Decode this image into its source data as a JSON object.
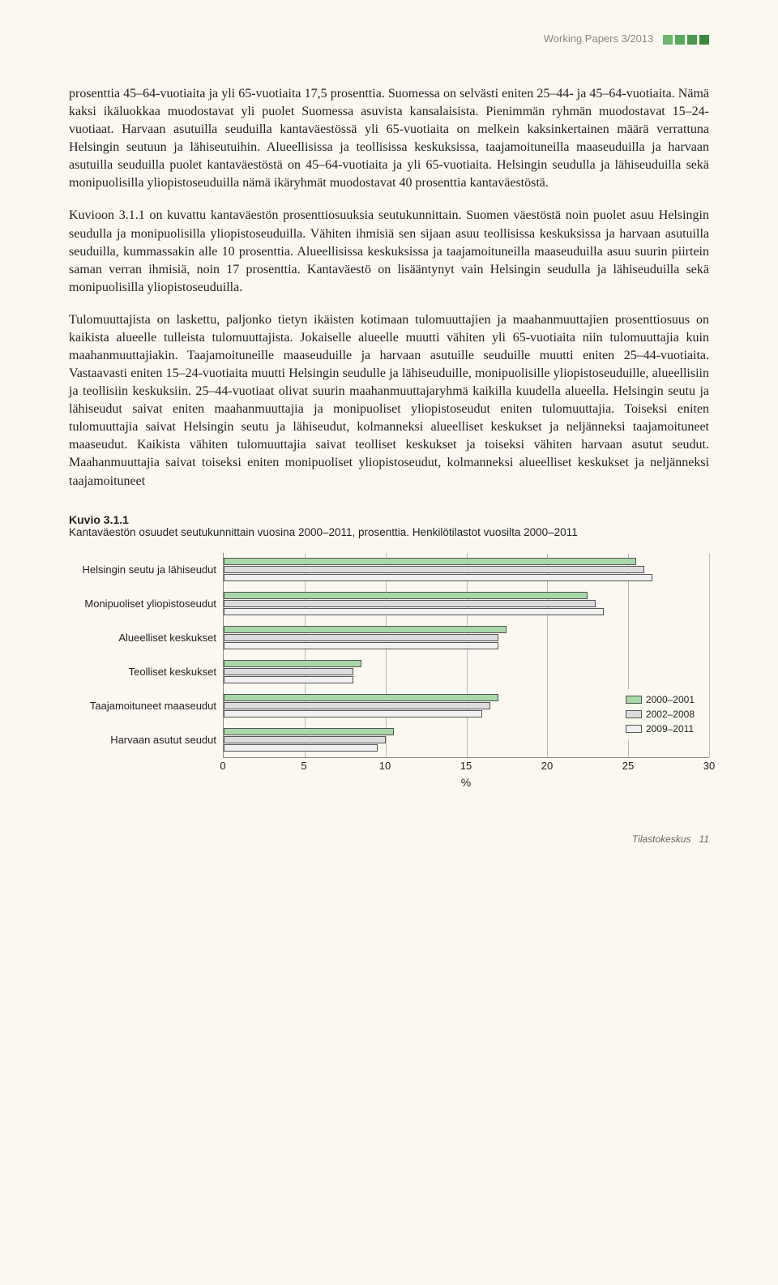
{
  "header": {
    "text": "Working Papers 3/2013"
  },
  "paragraphs": {
    "p1": "prosenttia 45–64-vuotiaita ja yli 65-vuotiaita 17,5 prosenttia. Suomessa on selvästi eniten 25–44- ja 45–64-vuotiaita. Nämä kaksi ikäluokkaa muodostavat yli puolet Suomessa asuvista kansalaisista. Pienimmän ryhmän muodostavat 15–24-vuotiaat. Harvaan asutuilla seuduilla kantaväestössä yli 65-vuotiaita on melkein kaksinkertainen määrä verrattuna Helsingin seutuun ja lähiseutuihin. Alueellisissa ja teollisissa keskuksissa, taajamoituneilla maaseuduilla ja harvaan asutuilla seuduilla puolet kantaväestöstä on 45–64-vuotiaita ja yli 65-vuotiaita. Helsingin seudulla ja lähiseuduilla sekä monipuolisilla yliopistoseuduilla nämä ikäryhmät muodostavat 40 prosenttia kantaväestöstä.",
    "p2": "Kuvioon 3.1.1 on kuvattu kantaväestön prosenttiosuuksia seutukunnittain. Suomen väestöstä noin puolet asuu Helsingin seudulla ja monipuolisilla yliopistoseuduilla. Vähiten ihmisiä sen sijaan asuu teollisissa keskuksissa ja harvaan asutuilla seuduilla, kummassakin alle 10 prosenttia. Alueellisissa keskuksissa ja taajamoituneilla maaseuduilla asuu suurin piirtein saman verran ihmisiä, noin 17 prosenttia. Kantaväestö on lisääntynyt vain Helsingin seudulla ja lähiseuduilla sekä monipuolisilla yliopistoseuduilla.",
    "p3": "Tulomuuttajista on laskettu, paljonko tietyn ikäisten kotimaan tulomuuttajien ja maahanmuuttajien prosenttiosuus on kaikista alueelle tulleista tulomuuttajista. Jokaiselle alueelle muutti vähiten yli 65-vuotiaita niin tulomuuttajia kuin maahanmuuttajiakin. Taajamoituneille maaseuduille ja harvaan asutuille seuduille muutti eniten 25–44-vuotiaita. Vastaavasti eniten 15–24-vuotiaita muutti Helsingin seudulle ja lähiseuduille, monipuolisille yliopistoseuduille, alueellisiin ja teollisiin keskuksiin. 25–44-vuotiaat olivat suurin maahanmuuttajaryhmä kaikilla kuudella alueella. Helsingin seutu ja lähiseudut saivat eniten maahanmuuttajia ja monipuoliset yliopistoseudut eniten tulomuuttajia. Toiseksi eniten tulomuuttajia saivat Helsingin seutu ja lähiseudut, kolmanneksi alueelliset keskukset ja neljänneksi taajamoituneet maaseudut. Kaikista vähiten tulomuuttajia saivat teolliset keskukset ja toiseksi vähiten harvaan asutut seudut. Maahanmuuttajia saivat toiseksi eniten monipuoliset yliopistoseudut, kolmanneksi alueelliset keskukset ja neljänneksi taajamoituneet"
  },
  "figure": {
    "title": "Kuvio 3.1.1",
    "subtitle": "Kantaväestön osuudet seutukunnittain vuosina 2000–2011, prosenttia. Henkilötilastot vuosilta 2000–2011",
    "type": "horizontal_grouped_bar",
    "x_label": "%",
    "xlim": [
      0,
      30
    ],
    "x_ticks": [
      0,
      5,
      10,
      15,
      20,
      25,
      30
    ],
    "categories": [
      "Helsingin seutu ja lähiseudut",
      "Monipuoliset yliopistoseudut",
      "Alueelliset keskukset",
      "Teolliset keskukset",
      "Taajamoituneet maaseudut",
      "Harvaan asutut seudut"
    ],
    "series": [
      {
        "name": "2000–2001",
        "color": "#a8d8a8",
        "values": [
          25.5,
          22.5,
          17.5,
          8.5,
          17.0,
          10.5
        ]
      },
      {
        "name": "2002–2008",
        "color": "#dcdcdc",
        "values": [
          26.0,
          23.0,
          17.0,
          8.0,
          16.5,
          10.0
        ]
      },
      {
        "name": "2009–2011",
        "color": "#f0f0f0",
        "values": [
          26.5,
          23.5,
          17.0,
          8.0,
          16.0,
          9.5
        ]
      }
    ],
    "grid_color": "#bbbbbb",
    "border_color": "#555555",
    "background_color": "#faf8f0",
    "label_fontsize": 13
  },
  "footer": {
    "text": "Tilastokeskus",
    "page": "11"
  }
}
